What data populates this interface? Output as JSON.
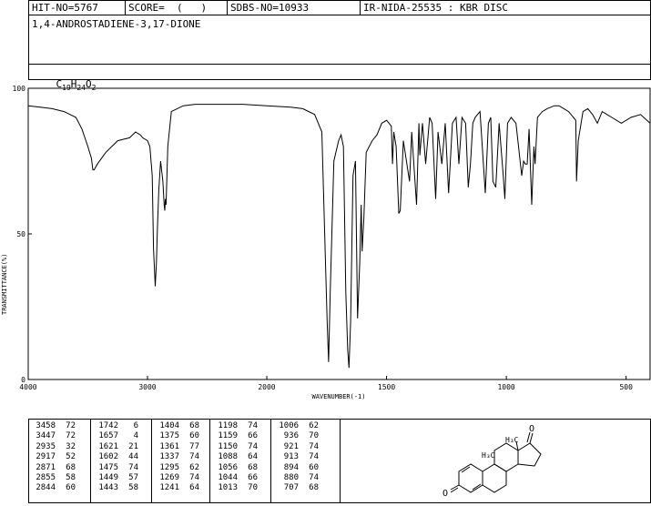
{
  "header": {
    "hit_no": "HIT-NO=5767",
    "score": "SCORE=  (   )",
    "sdbs_no": "SDBS-NO=10933",
    "ir_nida": "IR-NIDA-25535 : KBR DISC"
  },
  "compound": {
    "name": "1,4-ANDROSTADIENE-3,17-DIONE",
    "formula_parts": [
      "C",
      "19",
      "H",
      "24",
      "O",
      "2"
    ]
  },
  "chart_data": {
    "type": "line",
    "xlabel": "WAVENUMBER(-1)",
    "ylabel": "TRANSMITTANCE(%)",
    "xlim": [
      4000,
      400
    ],
    "ylim": [
      0,
      100
    ],
    "x_ticks": [
      4000,
      3000,
      2000,
      1500,
      1000,
      500
    ],
    "y_ticks": [
      0,
      50,
      100
    ],
    "series": [
      {
        "x": [
          4000,
          3900,
          3800,
          3700,
          3600,
          3550,
          3500,
          3470,
          3458,
          3447,
          3420,
          3350,
          3250,
          3150,
          3100,
          3060,
          3040,
          3000,
          2980,
          2960,
          2950,
          2935,
          2925,
          2917,
          2905,
          2890,
          2871,
          2860,
          2855,
          2850,
          2844,
          2830,
          2800,
          2700,
          2600,
          2400,
          2200,
          2000,
          1900,
          1850,
          1800,
          1770,
          1755,
          1748,
          1742,
          1735,
          1720,
          1700,
          1690,
          1680,
          1670,
          1662,
          1657,
          1650,
          1640,
          1630,
          1621,
          1612,
          1606,
          1602,
          1595,
          1585,
          1560,
          1540,
          1520,
          1500,
          1480,
          1475,
          1470,
          1460,
          1449,
          1443,
          1430,
          1404,
          1395,
          1375,
          1365,
          1361,
          1350,
          1337,
          1320,
          1310,
          1295,
          1285,
          1269,
          1255,
          1241,
          1225,
          1210,
          1198,
          1185,
          1170,
          1159,
          1150,
          1140,
          1130,
          1110,
          1088,
          1075,
          1065,
          1056,
          1044,
          1030,
          1013,
          1006,
          995,
          980,
          960,
          936,
          928,
          921,
          913,
          905,
          894,
          885,
          880,
          870,
          850,
          830,
          800,
          780,
          760,
          740,
          720,
          710,
          707,
          700,
          680,
          660,
          640,
          620,
          600,
          560,
          520,
          480,
          440,
          400
        ],
        "y": [
          94,
          93.5,
          93,
          92,
          90,
          86,
          80,
          76,
          72,
          72,
          74,
          78,
          82,
          83,
          85,
          84,
          83,
          82,
          80,
          70,
          45,
          32,
          40,
          52,
          65,
          75,
          68,
          60,
          58,
          62,
          60,
          80,
          92,
          94,
          94.5,
          94.5,
          94.5,
          94,
          93.5,
          93,
          91,
          85,
          40,
          20,
          6,
          30,
          75,
          82,
          84,
          80,
          30,
          10,
          4,
          20,
          70,
          75,
          21,
          40,
          60,
          44,
          55,
          78,
          82,
          84,
          88,
          89,
          87,
          74,
          85,
          80,
          57,
          58,
          82,
          68,
          85,
          60,
          88,
          77,
          88,
          74,
          90,
          88,
          62,
          85,
          74,
          88,
          64,
          88,
          90,
          74,
          90,
          88,
          66,
          74,
          88,
          90,
          92,
          64,
          88,
          90,
          68,
          66,
          88,
          70,
          62,
          88,
          90,
          88,
          70,
          75,
          74,
          74,
          86,
          60,
          80,
          74,
          90,
          92,
          93,
          94,
          94,
          93,
          92,
          90,
          89,
          68,
          82,
          92,
          93,
          91,
          88,
          92,
          90,
          88,
          90,
          91,
          88
        ]
      }
    ]
  },
  "peak_table": [
    [
      [
        "3458",
        "72"
      ],
      [
        "3447",
        "72"
      ],
      [
        "2935",
        "32"
      ],
      [
        "2917",
        "52"
      ],
      [
        "2871",
        "68"
      ],
      [
        "2855",
        "58"
      ],
      [
        "2844",
        "60"
      ]
    ],
    [
      [
        "1742",
        "6"
      ],
      [
        "1657",
        "4"
      ],
      [
        "1621",
        "21"
      ],
      [
        "1602",
        "44"
      ],
      [
        "1475",
        "74"
      ],
      [
        "1449",
        "57"
      ],
      [
        "1443",
        "58"
      ]
    ],
    [
      [
        "1404",
        "68"
      ],
      [
        "1375",
        "60"
      ],
      [
        "1361",
        "77"
      ],
      [
        "1337",
        "74"
      ],
      [
        "1295",
        "62"
      ],
      [
        "1269",
        "74"
      ],
      [
        "1241",
        "64"
      ]
    ],
    [
      [
        "1198",
        "74"
      ],
      [
        "1159",
        "66"
      ],
      [
        "1150",
        "74"
      ],
      [
        "1088",
        "64"
      ],
      [
        "1056",
        "68"
      ],
      [
        "1044",
        "66"
      ],
      [
        "1013",
        "70"
      ]
    ],
    [
      [
        "1006",
        "62"
      ],
      [
        "936",
        "70"
      ],
      [
        "921",
        "74"
      ],
      [
        "913",
        "74"
      ],
      [
        "894",
        "60"
      ],
      [
        "880",
        "74"
      ],
      [
        "707",
        "68"
      ]
    ]
  ],
  "structure_labels": {
    "oxygen_top": "O",
    "oxygen_left": "O",
    "methyl_c18": "H₃C",
    "methyl_c19": "H₃C"
  }
}
